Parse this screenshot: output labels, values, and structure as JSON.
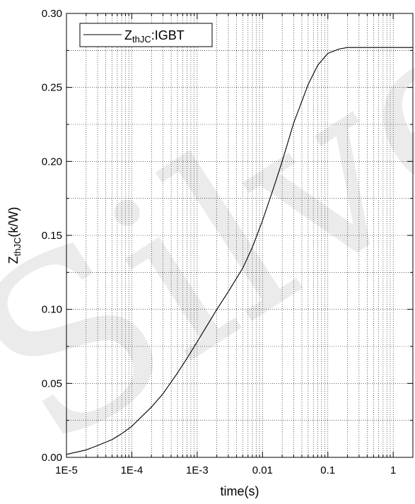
{
  "chart_data": {
    "type": "line",
    "xlabel": "time(s)",
    "ylabel": "ZthJC(k/W)",
    "xscale": "log",
    "xlim": [
      1e-05,
      2
    ],
    "ylim": [
      0,
      0.3
    ],
    "grid": "dotted, major and minor",
    "legend_position": "top-left",
    "x_tick_labels": [
      "1E-5",
      "1E-4",
      "1E-3",
      "0.01",
      "0.1",
      "1"
    ],
    "y_tick_labels": [
      "0.00",
      "0.05",
      "0.10",
      "0.15",
      "0.20",
      "0.25",
      "0.30"
    ],
    "series": [
      {
        "name": "ZthJC:IGBT",
        "color": "#000000",
        "x": [
          1e-05,
          2e-05,
          3e-05,
          5e-05,
          7e-05,
          0.0001,
          0.0002,
          0.0003,
          0.0005,
          0.0007,
          0.001,
          0.002,
          0.003,
          0.005,
          0.007,
          0.01,
          0.015,
          0.02,
          0.03,
          0.05,
          0.07,
          0.1,
          0.15,
          0.2,
          0.3,
          0.5,
          0.7,
          1,
          2
        ],
        "y": [
          0.002,
          0.005,
          0.008,
          0.012,
          0.016,
          0.021,
          0.034,
          0.043,
          0.057,
          0.067,
          0.078,
          0.1,
          0.112,
          0.128,
          0.142,
          0.16,
          0.183,
          0.2,
          0.226,
          0.252,
          0.265,
          0.273,
          0.276,
          0.277,
          0.277,
          0.277,
          0.277,
          0.277,
          0.277
        ]
      }
    ],
    "reference_lines_y": [
      0.275
    ]
  },
  "legend": {
    "label_main": "Z",
    "label_sub": "thJC",
    "label_rest": ":IGBT"
  },
  "axis": {
    "ylabel_main": "Z",
    "ylabel_sub": "thJC",
    "ylabel_rest": "(k/W)"
  },
  "watermark": {
    "text": "Silver"
  }
}
